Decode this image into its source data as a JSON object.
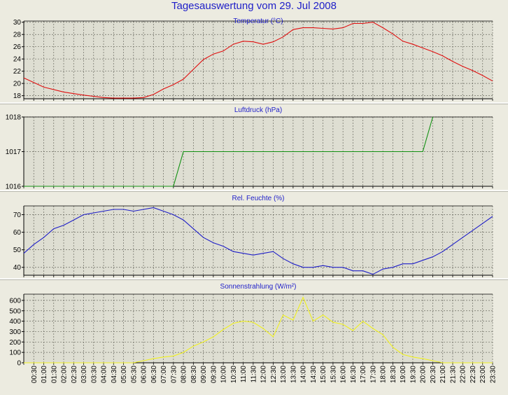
{
  "title": "Tagesauswertung vom 29. Jul 2008",
  "time_labels": [
    "00:30",
    "01:00",
    "01:30",
    "02:00",
    "02:30",
    "03:00",
    "03:30",
    "04:00",
    "04:30",
    "05:00",
    "05:30",
    "06:00",
    "06:30",
    "07:00",
    "07:30",
    "08:00",
    "08:30",
    "09:00",
    "09:30",
    "10:00",
    "10:30",
    "11:00",
    "11:30",
    "12:00",
    "12:30",
    "13:00",
    "13:30",
    "14:00",
    "14:30",
    "15:00",
    "15:30",
    "16:00",
    "16:30",
    "17:00",
    "17:30",
    "18:00",
    "18:30",
    "19:00",
    "19:30",
    "20:00",
    "20:30",
    "21:00",
    "21:30",
    "22:00",
    "22:30",
    "23:00",
    "23:30"
  ],
  "chart_data": [
    {
      "type": "line",
      "title": "Temperatur (°C)",
      "color": "#e01010",
      "ylim": [
        17.5,
        30.2
      ],
      "yticks": [
        18,
        20,
        22,
        24,
        26,
        28,
        30
      ],
      "grid": true,
      "x": [
        0.0,
        1.0,
        2.0,
        3.0,
        4.0,
        4.5,
        5.0,
        5.5,
        6.0,
        6.5,
        7.0,
        7.5,
        8.0,
        8.5,
        9.0,
        9.5,
        10.0,
        10.5,
        11.0,
        11.5,
        12.0,
        12.5,
        13.0,
        13.5,
        14.0,
        14.5,
        15.0,
        15.5,
        16.0,
        16.5,
        17.0,
        17.5,
        18.0,
        18.5,
        19.0,
        19.5,
        20.0,
        20.5,
        21.0,
        21.5,
        22.0,
        22.5,
        23.0,
        23.5
      ],
      "values": [
        20.9,
        19.4,
        18.6,
        18.1,
        17.7,
        17.6,
        17.6,
        17.6,
        17.7,
        18.2,
        19.1,
        19.8,
        20.7,
        22.3,
        23.9,
        24.8,
        25.3,
        26.4,
        26.9,
        26.8,
        26.4,
        26.8,
        27.6,
        28.8,
        29.1,
        29.1,
        29.0,
        28.9,
        29.1,
        29.8,
        29.8,
        30.0,
        29.1,
        28.1,
        26.9,
        26.4,
        25.8,
        25.2,
        24.5,
        23.6,
        22.8,
        22.1,
        21.3,
        20.4
      ]
    },
    {
      "type": "line",
      "title": "Luftdruck (hPa)",
      "color": "#119011",
      "ylim": [
        1016,
        1018
      ],
      "yticks": [
        1016,
        1017,
        1018
      ],
      "grid": true,
      "x": [
        0.0,
        7.5,
        8.0,
        20.0,
        20.5
      ],
      "values": [
        1016,
        1016,
        1017,
        1017,
        1018
      ]
    },
    {
      "type": "line",
      "title": "Rel. Feuchte (%)",
      "color": "#1e1ec8",
      "ylim": [
        35.5,
        75
      ],
      "yticks": [
        40,
        50,
        60,
        70
      ],
      "grid": true,
      "x": [
        0.0,
        0.5,
        1.0,
        1.5,
        2.0,
        2.5,
        3.0,
        3.5,
        4.0,
        4.5,
        5.0,
        5.5,
        6.0,
        6.5,
        7.0,
        7.5,
        8.0,
        8.5,
        9.0,
        9.5,
        10.0,
        10.5,
        11.0,
        11.5,
        12.0,
        12.5,
        13.0,
        13.5,
        14.0,
        14.5,
        15.0,
        15.5,
        16.0,
        16.5,
        17.0,
        17.5,
        18.0,
        18.5,
        19.0,
        19.5,
        20.0,
        20.5,
        21.0,
        21.5,
        22.0,
        22.5,
        23.0,
        23.5
      ],
      "values": [
        48,
        53,
        57,
        62,
        64,
        67,
        70,
        71,
        72,
        73,
        73,
        72,
        73,
        74,
        72,
        70,
        67,
        62,
        57,
        54,
        52,
        49,
        48,
        47,
        48,
        49,
        45,
        42,
        40,
        40,
        41,
        40,
        40,
        38,
        38,
        36,
        39,
        40,
        42,
        42,
        44,
        46,
        49,
        53,
        57,
        61,
        65,
        69
      ]
    },
    {
      "type": "line",
      "title": "Sonnenstrahlung (W/m²)",
      "color": "#f0f020",
      "ylim": [
        0,
        660
      ],
      "yticks": [
        0,
        100,
        200,
        300,
        400,
        500,
        600
      ],
      "grid": true,
      "x": [
        0.0,
        5.5,
        6.0,
        6.5,
        7.0,
        7.5,
        8.0,
        8.5,
        9.0,
        9.5,
        10.0,
        10.5,
        11.0,
        11.5,
        12.0,
        12.5,
        13.0,
        13.5,
        14.0,
        14.5,
        15.0,
        15.5,
        16.0,
        16.5,
        17.0,
        17.5,
        18.0,
        18.5,
        19.0,
        19.5,
        20.0,
        20.5,
        21.0,
        23.5
      ],
      "values": [
        0,
        0,
        20,
        40,
        55,
        65,
        100,
        160,
        200,
        250,
        320,
        380,
        400,
        390,
        330,
        250,
        460,
        410,
        630,
        400,
        460,
        390,
        370,
        310,
        400,
        330,
        270,
        150,
        80,
        55,
        40,
        20,
        0,
        0
      ]
    }
  ]
}
